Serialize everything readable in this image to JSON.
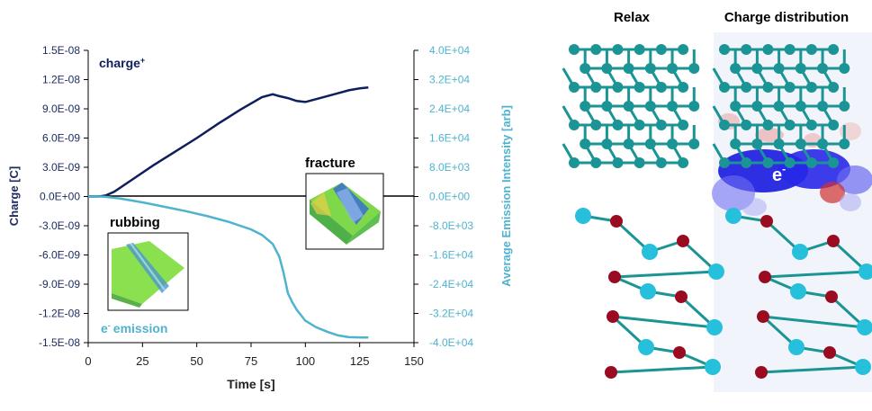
{
  "chart_data": {
    "type": "line",
    "xlabel": "Time [s]",
    "ylabel": "Charge [C]",
    "y2label": "Average Emission Intensity [arb]",
    "xlim": [
      0,
      150
    ],
    "ylim": [
      -1.5e-08,
      1.5e-08
    ],
    "y2lim": [
      -40000,
      40000
    ],
    "xticks": [
      "0",
      "25",
      "50",
      "75",
      "100",
      "125",
      "150"
    ],
    "yticks": [
      "1.5E-08",
      "1.2E-08",
      "9.0E-09",
      "6.0E-09",
      "3.0E-09",
      "0.0E+00",
      "-3.0E-09",
      "-6.0E-09",
      "-9.0E-09",
      "-1.2E-08",
      "-1.5E-08"
    ],
    "y2ticks": [
      "4.0E+04",
      "3.2E+04",
      "2.4E+04",
      "1.6E+04",
      "8.0E+03",
      "0.0E+00",
      "-8.0E+03",
      "-1.6E+04",
      "-2.4E+04",
      "-3.2E+04",
      "-4.0E+04"
    ],
    "grid": false,
    "series": [
      {
        "name": "charge",
        "axis": "left",
        "color": "#0f1f5c",
        "x": [
          0,
          5,
          8,
          12,
          20,
          30,
          40,
          50,
          60,
          70,
          80,
          85,
          88,
          92,
          96,
          100,
          105,
          110,
          115,
          120,
          125,
          129
        ],
        "y": [
          0,
          0,
          1e-10,
          5e-10,
          1.7e-09,
          3.2e-09,
          4.6e-09,
          6e-09,
          7.5e-09,
          8.9e-09,
          1.02e-08,
          1.05e-08,
          1.03e-08,
          1.01e-08,
          9.8e-09,
          9.7e-09,
          1e-08,
          1.03e-08,
          1.06e-08,
          1.09e-08,
          1.11e-08,
          1.12e-08
        ]
      },
      {
        "name": "e- emission",
        "axis": "right",
        "color": "#4fb3cf",
        "x": [
          0,
          5,
          8,
          15,
          25,
          35,
          45,
          55,
          65,
          75,
          80,
          85,
          88,
          90,
          92,
          94,
          96,
          98,
          100,
          105,
          110,
          115,
          120,
          126,
          129
        ],
        "y": [
          0,
          0,
          -100,
          -600,
          -1600,
          -2800,
          -4000,
          -5400,
          -7000,
          -9000,
          -10500,
          -13000,
          -16500,
          -21000,
          -26500,
          -29000,
          -31000,
          -32500,
          -34000,
          -35800,
          -37000,
          -38000,
          -38500,
          -38600,
          -38600
        ]
      }
    ]
  },
  "annotations": {
    "charge_label": "charge",
    "charge_sup": "+",
    "emission_label": "emission",
    "emission_prefix": "e",
    "emission_sup": "-",
    "fracture_label": "fracture",
    "rubbing_label": "rubbing"
  },
  "panels": {
    "relax_title": "Relax",
    "charge_title": "Charge distribution",
    "electron_label": "e",
    "electron_sup": "-"
  }
}
